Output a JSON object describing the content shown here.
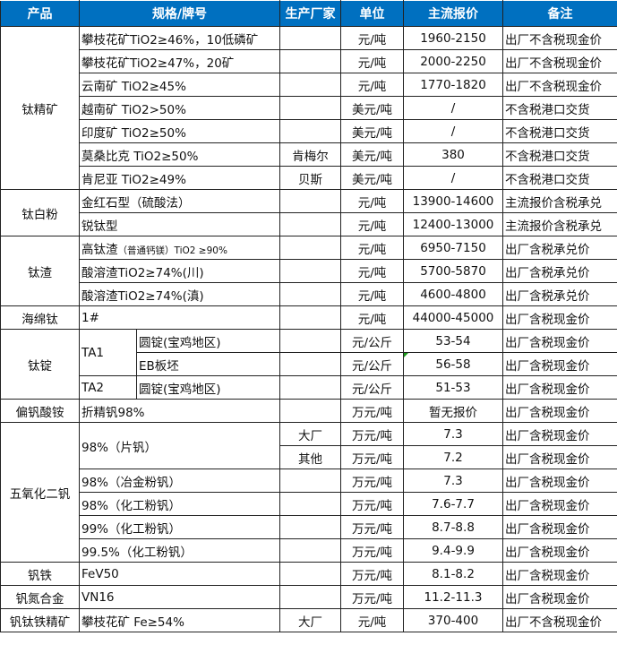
{
  "header": [
    "产品",
    "规格/牌号",
    "生产厂家",
    "单位",
    "主流报价",
    "备注"
  ],
  "products": [
    "钛精矿",
    "钛白粉",
    "钛渣",
    "海绵钛",
    "钛锭",
    "偏钒酸铵",
    "五氧化二钒",
    "钒铁",
    "钒氮合金",
    "钒钛铁精矿"
  ],
  "rows": [
    {
      "spec": "攀枝花矿TiO2≥46%，10低磷矿",
      "maker": "",
      "unit": "元/吨",
      "price": "1960-2150",
      "note": "出厂不含税现金价"
    },
    {
      "spec": "攀枝花矿TiO2≥47%，20矿",
      "maker": "",
      "unit": "元/吨",
      "price": "2000-2250",
      "note": "出厂不含税现金价"
    },
    {
      "spec": "云南矿 TiO2≥45%",
      "maker": "",
      "unit": "元/吨",
      "price": "1770-1820",
      "note": "出厂不含税现金价"
    },
    {
      "spec": "越南矿 TiO2>50%",
      "maker": "",
      "unit": "美元/吨",
      "price": "/",
      "note": "不含税港口交货"
    },
    {
      "spec": "印度矿 TiO2≥50%",
      "maker": "",
      "unit": "美元/吨",
      "price": "/",
      "note": "不含税港口交货"
    },
    {
      "spec": "莫桑比克 TiO2≥50%",
      "maker": "肯梅尔",
      "unit": "美元/吨",
      "price": "380",
      "note": "不含税港口交货"
    },
    {
      "spec": "肯尼亚 TiO2≥49%",
      "maker": "贝斯",
      "unit": "美元/吨",
      "price": "/",
      "note": "不含税港口交货"
    },
    {
      "spec": "金红石型（硫酸法）",
      "maker": "",
      "unit": "元/吨",
      "price": "13900-14600",
      "note": "主流报价含税承兑"
    },
    {
      "spec": "锐钛型",
      "maker": "",
      "unit": "元/吨",
      "price": "12400-13000",
      "note": "主流报价含税承兑"
    },
    {
      "spec": "高钛渣",
      "spec_small": "（普通钙镁）TiO2 ≥90%",
      "maker": "",
      "unit": "元/吨",
      "price": "6950-7150",
      "note": "出厂含税承兑价"
    },
    {
      "spec": "酸溶渣TiO2≥74%(川)",
      "maker": "",
      "unit": "元/吨",
      "price": "5700-5870",
      "note": "出厂含税承兑价"
    },
    {
      "spec": "酸溶渣TiO2≥74%(滇)",
      "maker": "",
      "unit": "元/吨",
      "price": "4600-4800",
      "note": "出厂含税承兑价"
    },
    {
      "spec": "1#",
      "maker": "",
      "unit": "元/吨",
      "price": "44000-45000",
      "note": "出厂含税现金价"
    },
    {
      "grade": "TA1",
      "spec": "圆锭(宝鸡地区)",
      "maker": "",
      "unit": "元/公斤",
      "price": "53-54",
      "note": "出厂含税现金价"
    },
    {
      "spec": "EB板坯",
      "maker": "",
      "unit": "元/公斤",
      "price": "56-58",
      "note": "出厂含税现金价"
    },
    {
      "grade": "TA2",
      "spec": "圆锭(宝鸡地区)",
      "maker": "",
      "unit": "元/公斤",
      "price": "51-53",
      "note": "出厂含税现金价"
    },
    {
      "spec": "折精钒98%",
      "maker": "",
      "unit": "万元/吨",
      "price": "暂无报价",
      "note": "出厂含税现金价"
    },
    {
      "spec": "98%（片钒）",
      "maker": "大厂",
      "unit": "万元/吨",
      "price": "7.3",
      "note": "出厂含税现金价"
    },
    {
      "maker": "其他",
      "unit": "万元/吨",
      "price": "7.2",
      "note": "出厂含税现金价"
    },
    {
      "spec": "98%（冶金粉钒）",
      "maker": "",
      "unit": "万元/吨",
      "price": "7.3",
      "note": "出厂含税现金价"
    },
    {
      "spec": "98%（化工粉钒）",
      "maker": "",
      "unit": "万元/吨",
      "price": "7.6-7.7",
      "note": "出厂含税现金价"
    },
    {
      "spec": "99%（化工粉钒）",
      "maker": "",
      "unit": "万元/吨",
      "price": "8.7-8.8",
      "note": "出厂含税现金价"
    },
    {
      "spec": "99.5%（化工粉钒）",
      "maker": "",
      "unit": "万元/吨",
      "price": "9.4-9.9",
      "note": "出厂含税现金价"
    },
    {
      "spec": "FeV50",
      "maker": "",
      "unit": "万元/吨",
      "price": "8.1-8.2",
      "note": "出厂含税现金价"
    },
    {
      "spec": "VN16",
      "maker": "",
      "unit": "万元/吨",
      "price": "11.2-11.3",
      "note": "出厂含税现金价"
    },
    {
      "spec": "攀枝花矿 Fe≥54%",
      "maker": "大厂",
      "unit": "元/吨",
      "price": "370-400",
      "note": "出厂不含税现金价"
    }
  ],
  "colors": {
    "header_bg": "#0070c0",
    "header_text": "#ffffff",
    "comment_marker": "#1a9a1a"
  }
}
